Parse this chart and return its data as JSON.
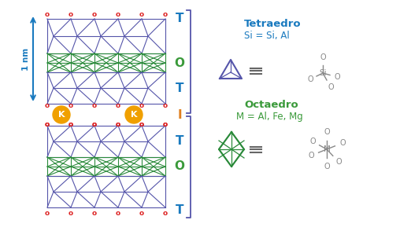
{
  "bg_color": "#ffffff",
  "nm_label": "1 nm",
  "tetra_title": "Tetraedro",
  "tetra_formula": "Si = Si, Al",
  "tetra_title_color": "#1a7abf",
  "tetra_formula_color": "#1a7abf",
  "octa_title": "Octaedro",
  "octa_formula": "M = Al, Fe, Mg",
  "octa_title_color": "#3a9a3a",
  "octa_formula_color": "#3a9a3a",
  "struct_blue": "#5555aa",
  "struct_green": "#2a8a3a",
  "red_o": "#dd2222",
  "k_color": "#f0a000",
  "k_text": "K",
  "bracket_color": "#5555aa",
  "equiv_color": "#666666",
  "mol_color": "#888888",
  "arrow_color": "#1a7abf"
}
